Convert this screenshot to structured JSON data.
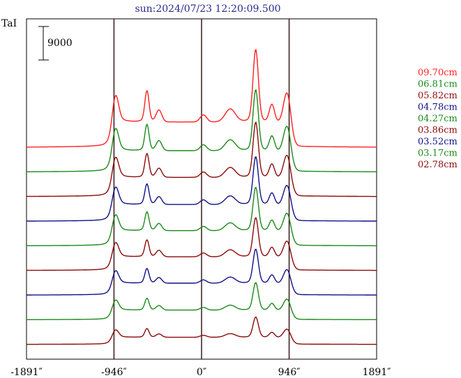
{
  "chart_data": {
    "type": "line",
    "title": "sun:2024/07/23 12:20:09.500",
    "ylabel": "TaI",
    "scale_bar_label": "9000",
    "xlim": [
      -1891,
      1891
    ],
    "x_ticks": [
      {
        "value": -1891,
        "label": "-1891″"
      },
      {
        "value": -946,
        "label": "-946″"
      },
      {
        "value": 0,
        "label": "0″"
      },
      {
        "value": 946,
        "label": "946″"
      },
      {
        "value": 1891,
        "label": "1891″"
      }
    ],
    "vertical_lines": [
      -946,
      0,
      946
    ],
    "series": [
      {
        "name": "09.70cm",
        "color": "#ff2020",
        "peak": 1.0
      },
      {
        "name": "06.81cm",
        "color": "#1a8a1a",
        "peak": 0.84
      },
      {
        "name": "05.82cm",
        "color": "#8b0a0a",
        "peak": 0.76
      },
      {
        "name": "04.78cm",
        "color": "#10108a",
        "peak": 0.66
      },
      {
        "name": "04.27cm",
        "color": "#1a8a1a",
        "peak": 0.6
      },
      {
        "name": "03.86cm",
        "color": "#8b0a0a",
        "peak": 0.54
      },
      {
        "name": "03.52cm",
        "color": "#10108a",
        "peak": 0.47
      },
      {
        "name": "03.17cm",
        "color": "#1a8a1a",
        "peak": 0.38
      },
      {
        "name": "02.78cm",
        "color": "#8b0a0a",
        "peak": 0.28
      }
    ]
  }
}
